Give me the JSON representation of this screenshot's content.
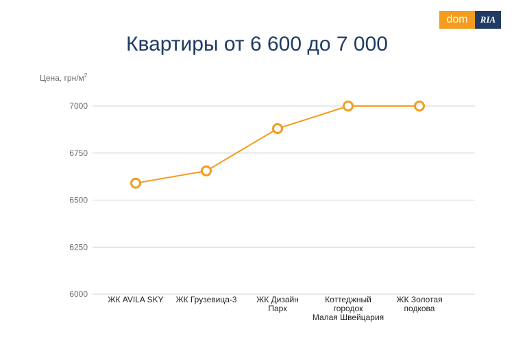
{
  "logo": {
    "dom": "dom",
    "ria": "RIA"
  },
  "chart_data": {
    "type": "line",
    "title": "Квартиры от 6 600 до 7 000",
    "ylabel": "Цена, грн/м",
    "ylabel_sup": "2",
    "xlabel": "",
    "categories": [
      [
        "ЖК AVILA SKY"
      ],
      [
        "ЖК Грузевица-3"
      ],
      [
        "ЖК Дизайн",
        "Парк"
      ],
      [
        "Коттеджный",
        "городок",
        "Малая Швейцария"
      ],
      [
        "ЖК Золотая",
        "подкова"
      ]
    ],
    "series": [
      {
        "values": [
          6590,
          6655,
          6880,
          7000,
          7000
        ]
      }
    ],
    "ylim": [
      6000,
      7000
    ],
    "yticks": [
      6000,
      6250,
      6500,
      6750,
      7000
    ],
    "grid": true,
    "colors": {
      "line": "#f39c1e",
      "grid": "#d0d0d0",
      "title": "#1f3b63"
    }
  }
}
